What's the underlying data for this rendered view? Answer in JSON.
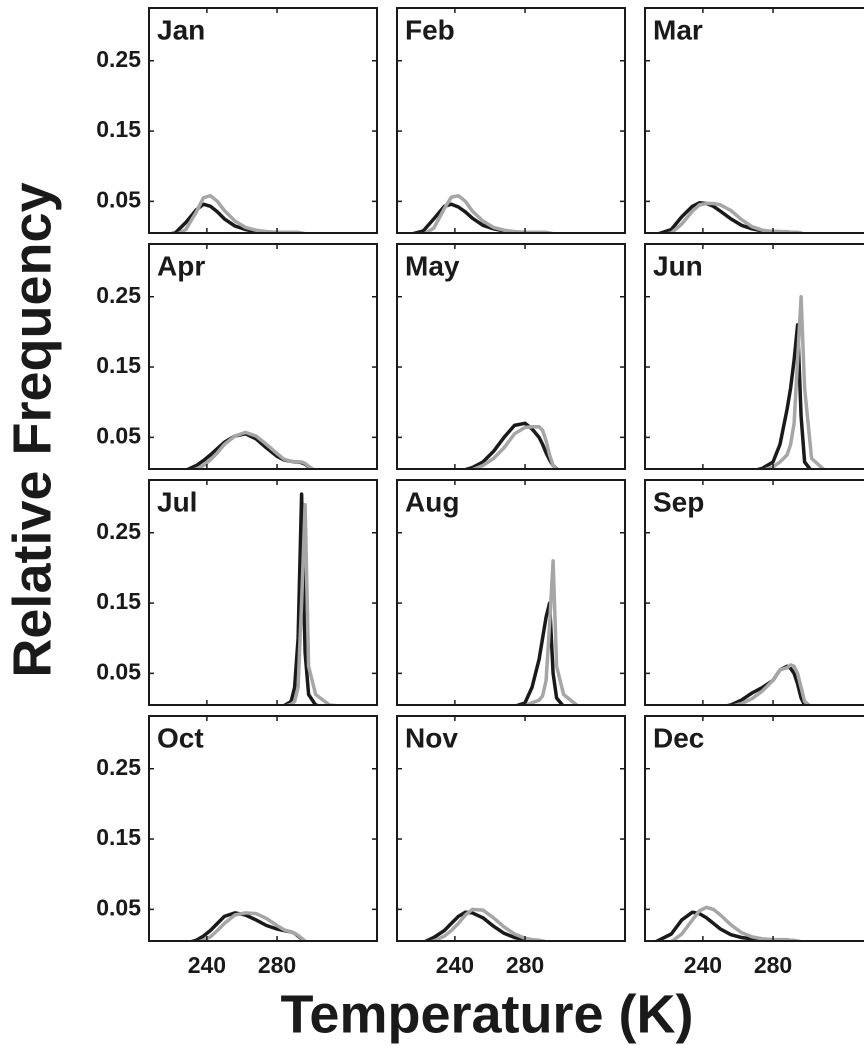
{
  "ylabel": "Relative Frequency",
  "xlabel": "Temperature (K)",
  "chart_data": [
    {
      "type": "line",
      "title": "Jan",
      "x": [
        210,
        222,
        228,
        234,
        238,
        242,
        246,
        250,
        256,
        262,
        268,
        274,
        280,
        284,
        288,
        290,
        292,
        294,
        296,
        298,
        302,
        310,
        330
      ],
      "series": [
        {
          "color": "#1a1a1a",
          "values": [
            0,
            0.005,
            0.02,
            0.038,
            0.046,
            0.043,
            0.035,
            0.025,
            0.015,
            0.01,
            0.007,
            0.006,
            0.005,
            0.005,
            0.005,
            0.004,
            0.004,
            0.004,
            0.003,
            0.002,
            0,
            0,
            0
          ]
        },
        {
          "color": "#a6a6a6",
          "values": [
            0,
            0.002,
            0.01,
            0.035,
            0.055,
            0.058,
            0.05,
            0.037,
            0.022,
            0.013,
            0.009,
            0.007,
            0.006,
            0.006,
            0.006,
            0.006,
            0.006,
            0.005,
            0.004,
            0.003,
            0,
            0,
            0
          ]
        }
      ],
      "xlim": [
        207,
        337
      ],
      "ylim": [
        0.005,
        0.325
      ],
      "xticks": [
        240,
        280
      ],
      "yticks": [
        0.05,
        0.15,
        0.25
      ]
    },
    {
      "type": "line",
      "title": "Feb",
      "x": [
        210,
        222,
        228,
        234,
        238,
        242,
        246,
        250,
        256,
        262,
        268,
        274,
        280,
        284,
        288,
        290,
        292,
        294,
        296,
        298,
        302,
        310,
        330
      ],
      "series": [
        {
          "color": "#1a1a1a",
          "values": [
            0,
            0.008,
            0.025,
            0.043,
            0.046,
            0.042,
            0.035,
            0.026,
            0.016,
            0.011,
            0.008,
            0.006,
            0.005,
            0.005,
            0.005,
            0.005,
            0.004,
            0.004,
            0.003,
            0.002,
            0,
            0,
            0
          ]
        },
        {
          "color": "#a6a6a6",
          "values": [
            0,
            0.003,
            0.012,
            0.04,
            0.056,
            0.058,
            0.05,
            0.036,
            0.022,
            0.013,
            0.009,
            0.007,
            0.006,
            0.006,
            0.006,
            0.006,
            0.006,
            0.005,
            0.004,
            0.003,
            0,
            0,
            0
          ]
        }
      ],
      "xlim": [
        207,
        337
      ],
      "ylim": [
        0.005,
        0.325
      ],
      "xticks": [
        240,
        280
      ],
      "yticks": [
        0.05,
        0.15,
        0.25
      ]
    },
    {
      "type": "line",
      "title": "Mar",
      "x": [
        210,
        222,
        228,
        234,
        238,
        242,
        246,
        250,
        256,
        262,
        268,
        274,
        280,
        284,
        288,
        290,
        292,
        294,
        296,
        298,
        302,
        310,
        330
      ],
      "series": [
        {
          "color": "#1a1a1a",
          "values": [
            0,
            0.01,
            0.028,
            0.043,
            0.048,
            0.047,
            0.043,
            0.036,
            0.025,
            0.016,
            0.011,
            0.008,
            0.007,
            0.007,
            0.006,
            0.006,
            0.006,
            0.005,
            0.004,
            0.002,
            0,
            0,
            0
          ]
        },
        {
          "color": "#a6a6a6",
          "values": [
            0,
            0.005,
            0.018,
            0.036,
            0.045,
            0.047,
            0.047,
            0.045,
            0.037,
            0.024,
            0.014,
            0.009,
            0.007,
            0.007,
            0.007,
            0.006,
            0.006,
            0.006,
            0.005,
            0.003,
            0,
            0,
            0
          ]
        }
      ],
      "xlim": [
        207,
        337
      ],
      "ylim": [
        0.005,
        0.325
      ],
      "xticks": [
        240,
        280
      ],
      "yticks": [
        0.05,
        0.15,
        0.25
      ]
    },
    {
      "type": "line",
      "title": "Apr",
      "x": [
        210,
        222,
        228,
        234,
        238,
        242,
        246,
        250,
        256,
        262,
        268,
        274,
        280,
        284,
        288,
        290,
        292,
        294,
        296,
        298,
        302,
        310,
        330
      ],
      "series": [
        {
          "color": "#1a1a1a",
          "values": [
            0,
            0,
            0.003,
            0.01,
            0.017,
            0.025,
            0.034,
            0.043,
            0.052,
            0.055,
            0.048,
            0.035,
            0.023,
            0.018,
            0.016,
            0.015,
            0.015,
            0.014,
            0.012,
            0.008,
            0.002,
            0,
            0
          ]
        },
        {
          "color": "#a6a6a6",
          "values": [
            0,
            0,
            0.001,
            0.005,
            0.01,
            0.018,
            0.028,
            0.04,
            0.052,
            0.057,
            0.052,
            0.04,
            0.027,
            0.019,
            0.016,
            0.015,
            0.015,
            0.015,
            0.013,
            0.009,
            0.002,
            0,
            0
          ]
        }
      ],
      "xlim": [
        207,
        337
      ],
      "ylim": [
        0.005,
        0.325
      ],
      "xticks": [
        240,
        280
      ],
      "yticks": [
        0.05,
        0.15,
        0.25
      ]
    },
    {
      "type": "line",
      "title": "May",
      "x": [
        210,
        222,
        228,
        234,
        238,
        242,
        246,
        250,
        256,
        262,
        268,
        274,
        280,
        284,
        288,
        290,
        292,
        294,
        296,
        298,
        302,
        310,
        330
      ],
      "series": [
        {
          "color": "#1a1a1a",
          "values": [
            0,
            0,
            0,
            0,
            0,
            0.002,
            0.004,
            0.007,
            0.015,
            0.03,
            0.05,
            0.067,
            0.07,
            0.062,
            0.05,
            0.04,
            0.028,
            0.018,
            0.01,
            0.005,
            0.001,
            0,
            0
          ]
        },
        {
          "color": "#a6a6a6",
          "values": [
            0,
            0,
            0,
            0,
            0,
            0.001,
            0.002,
            0.004,
            0.01,
            0.02,
            0.035,
            0.055,
            0.064,
            0.065,
            0.065,
            0.06,
            0.045,
            0.025,
            0.01,
            0.004,
            0.001,
            0,
            0
          ]
        }
      ],
      "xlim": [
        207,
        337
      ],
      "ylim": [
        0.005,
        0.325
      ],
      "xticks": [
        240,
        280
      ],
      "yticks": [
        0.05,
        0.15,
        0.25
      ]
    },
    {
      "type": "line",
      "title": "Jun",
      "x": [
        210,
        222,
        228,
        234,
        238,
        242,
        246,
        250,
        256,
        262,
        268,
        274,
        280,
        284,
        288,
        290,
        292,
        294,
        296,
        298,
        302,
        310,
        330
      ],
      "series": [
        {
          "color": "#1a1a1a",
          "values": [
            0,
            0,
            0,
            0,
            0,
            0,
            0,
            0,
            0,
            0.001,
            0.002,
            0.006,
            0.015,
            0.04,
            0.09,
            0.12,
            0.16,
            0.21,
            0.08,
            0.015,
            0.002,
            0,
            0
          ]
        },
        {
          "color": "#a6a6a6",
          "values": [
            0,
            0,
            0,
            0,
            0,
            0,
            0,
            0,
            0,
            0.001,
            0.001,
            0.003,
            0.008,
            0.015,
            0.025,
            0.04,
            0.07,
            0.16,
            0.25,
            0.12,
            0.02,
            0.002,
            0
          ]
        }
      ],
      "xlim": [
        207,
        337
      ],
      "ylim": [
        0.005,
        0.325
      ],
      "xticks": [
        240,
        280
      ],
      "yticks": [
        0.05,
        0.15,
        0.25
      ]
    },
    {
      "type": "line",
      "title": "Jul",
      "x": [
        210,
        222,
        228,
        234,
        238,
        242,
        246,
        250,
        256,
        262,
        268,
        274,
        280,
        284,
        288,
        290,
        292,
        294,
        296,
        298,
        302,
        310,
        330
      ],
      "series": [
        {
          "color": "#1a1a1a",
          "values": [
            0,
            0,
            0,
            0,
            0,
            0,
            0,
            0,
            0,
            0,
            0,
            0.001,
            0.002,
            0.004,
            0.01,
            0.03,
            0.1,
            0.305,
            0.08,
            0.02,
            0.005,
            0,
            0
          ]
        },
        {
          "color": "#a6a6a6",
          "values": [
            0,
            0,
            0,
            0,
            0,
            0,
            0,
            0,
            0,
            0,
            0,
            0.001,
            0.002,
            0.003,
            0.006,
            0.01,
            0.03,
            0.15,
            0.29,
            0.06,
            0.02,
            0.005,
            0
          ]
        }
      ],
      "xlim": [
        207,
        337
      ],
      "ylim": [
        0.005,
        0.325
      ],
      "xticks": [
        240,
        280
      ],
      "yticks": [
        0.05,
        0.15,
        0.25
      ]
    },
    {
      "type": "line",
      "title": "Aug",
      "x": [
        210,
        222,
        228,
        234,
        238,
        242,
        246,
        250,
        256,
        262,
        268,
        274,
        280,
        284,
        288,
        290,
        292,
        294,
        296,
        298,
        302,
        310,
        330
      ],
      "series": [
        {
          "color": "#1a1a1a",
          "values": [
            0,
            0,
            0,
            0,
            0,
            0,
            0,
            0,
            0,
            0,
            0.001,
            0.003,
            0.008,
            0.03,
            0.07,
            0.1,
            0.13,
            0.15,
            0.05,
            0.015,
            0.003,
            0,
            0
          ]
        },
        {
          "color": "#a6a6a6",
          "values": [
            0,
            0,
            0,
            0,
            0,
            0,
            0,
            0,
            0,
            0,
            0.001,
            0.002,
            0.004,
            0.008,
            0.012,
            0.018,
            0.04,
            0.12,
            0.21,
            0.06,
            0.02,
            0.004,
            0
          ]
        }
      ],
      "xlim": [
        207,
        337
      ],
      "ylim": [
        0.005,
        0.325
      ],
      "xticks": [
        240,
        280
      ],
      "yticks": [
        0.05,
        0.15,
        0.25
      ]
    },
    {
      "type": "line",
      "title": "Sep",
      "x": [
        210,
        222,
        228,
        234,
        238,
        242,
        246,
        250,
        256,
        262,
        268,
        274,
        280,
        284,
        288,
        290,
        292,
        294,
        296,
        298,
        302,
        310,
        330
      ],
      "series": [
        {
          "color": "#1a1a1a",
          "values": [
            0,
            0,
            0,
            0,
            0,
            0,
            0.001,
            0.002,
            0.005,
            0.012,
            0.022,
            0.03,
            0.04,
            0.055,
            0.06,
            0.057,
            0.05,
            0.035,
            0.015,
            0.005,
            0.001,
            0,
            0
          ]
        },
        {
          "color": "#a6a6a6",
          "values": [
            0,
            0,
            0,
            0,
            0,
            0,
            0,
            0.001,
            0.003,
            0.007,
            0.014,
            0.025,
            0.04,
            0.055,
            0.058,
            0.062,
            0.06,
            0.05,
            0.03,
            0.01,
            0.002,
            0,
            0
          ]
        }
      ],
      "xlim": [
        207,
        337
      ],
      "ylim": [
        0.005,
        0.325
      ],
      "xticks": [
        240,
        280
      ],
      "yticks": [
        0.05,
        0.15,
        0.25
      ]
    },
    {
      "type": "line",
      "title": "Oct",
      "x": [
        210,
        222,
        228,
        234,
        238,
        242,
        246,
        250,
        256,
        262,
        268,
        274,
        280,
        284,
        288,
        290,
        292,
        294,
        296,
        298,
        302,
        310,
        330
      ],
      "series": [
        {
          "color": "#1a1a1a",
          "values": [
            0,
            0,
            0.002,
            0.006,
            0.012,
            0.02,
            0.03,
            0.04,
            0.045,
            0.042,
            0.035,
            0.027,
            0.022,
            0.02,
            0.018,
            0.016,
            0.012,
            0.008,
            0.004,
            0.002,
            0,
            0,
            0
          ]
        },
        {
          "color": "#a6a6a6",
          "values": [
            0,
            0,
            0.001,
            0.003,
            0.006,
            0.011,
            0.02,
            0.03,
            0.042,
            0.045,
            0.044,
            0.037,
            0.027,
            0.021,
            0.018,
            0.016,
            0.013,
            0.009,
            0.005,
            0.002,
            0,
            0,
            0
          ]
        }
      ],
      "xlim": [
        207,
        337
      ],
      "ylim": [
        0.005,
        0.325
      ],
      "xticks": [
        240,
        280
      ],
      "yticks": [
        0.05,
        0.15,
        0.25
      ]
    },
    {
      "type": "line",
      "title": "Nov",
      "x": [
        210,
        222,
        228,
        234,
        238,
        242,
        246,
        250,
        256,
        262,
        268,
        274,
        280,
        284,
        288,
        290,
        292,
        294,
        296,
        298,
        302,
        310,
        330
      ],
      "series": [
        {
          "color": "#1a1a1a",
          "values": [
            0,
            0.003,
            0.01,
            0.02,
            0.03,
            0.04,
            0.046,
            0.045,
            0.038,
            0.026,
            0.016,
            0.01,
            0.007,
            0.006,
            0.005,
            0.004,
            0.003,
            0.002,
            0.001,
            0,
            0,
            0,
            0
          ]
        },
        {
          "color": "#a6a6a6",
          "values": [
            0,
            0.001,
            0.005,
            0.012,
            0.02,
            0.03,
            0.042,
            0.05,
            0.049,
            0.038,
            0.025,
            0.015,
            0.009,
            0.007,
            0.006,
            0.005,
            0.004,
            0.003,
            0.002,
            0.001,
            0,
            0,
            0
          ]
        }
      ],
      "xlim": [
        207,
        337
      ],
      "ylim": [
        0.005,
        0.325
      ],
      "xticks": [
        240,
        280
      ],
      "yticks": [
        0.05,
        0.15,
        0.25
      ]
    },
    {
      "type": "line",
      "title": "Dec",
      "x": [
        210,
        222,
        228,
        234,
        238,
        242,
        246,
        250,
        256,
        262,
        268,
        274,
        280,
        284,
        288,
        290,
        292,
        294,
        296,
        298,
        302,
        310,
        330
      ],
      "series": [
        {
          "color": "#1a1a1a",
          "values": [
            0,
            0.015,
            0.035,
            0.046,
            0.044,
            0.038,
            0.03,
            0.022,
            0.014,
            0.01,
            0.008,
            0.007,
            0.006,
            0.006,
            0.006,
            0.005,
            0.004,
            0.003,
            0.002,
            0.001,
            0,
            0,
            0
          ]
        },
        {
          "color": "#a6a6a6",
          "values": [
            0,
            0.004,
            0.015,
            0.035,
            0.048,
            0.053,
            0.05,
            0.042,
            0.028,
            0.017,
            0.011,
            0.008,
            0.007,
            0.007,
            0.007,
            0.006,
            0.006,
            0.005,
            0.004,
            0.002,
            0,
            0,
            0
          ]
        }
      ],
      "xlim": [
        207,
        337
      ],
      "ylim": [
        0.005,
        0.325
      ],
      "xticks": [
        240,
        280
      ],
      "yticks": [
        0.05,
        0.15,
        0.25
      ]
    }
  ]
}
